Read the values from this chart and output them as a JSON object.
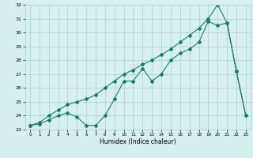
{
  "xlabel": "Humidex (Indice chaleur)",
  "line1_x": [
    0,
    1,
    2,
    3,
    4,
    5,
    6,
    7,
    8,
    9,
    10,
    11,
    12,
    13,
    14,
    15,
    16,
    17,
    18,
    19,
    20,
    21,
    22,
    23
  ],
  "line1_y": [
    23.3,
    23.4,
    23.7,
    24.0,
    24.2,
    23.9,
    23.3,
    23.3,
    24.0,
    25.2,
    26.5,
    26.5,
    27.4,
    26.5,
    27.0,
    28.0,
    28.5,
    28.8,
    29.3,
    30.8,
    30.5,
    30.7,
    27.2,
    24.0
  ],
  "line2_x": [
    0,
    1,
    2,
    3,
    4,
    5,
    6,
    7,
    8,
    9,
    10,
    11,
    12,
    13,
    14,
    15,
    16,
    17,
    18,
    19,
    20,
    21,
    22,
    23
  ],
  "line2_y": [
    23.3,
    23.5,
    24.0,
    24.4,
    24.8,
    25.0,
    25.2,
    25.5,
    26.0,
    26.5,
    27.0,
    27.3,
    27.7,
    28.0,
    28.4,
    28.8,
    29.3,
    29.8,
    30.3,
    31.0,
    32.0,
    30.7,
    27.2,
    24.0
  ],
  "line_color": "#1a7a6e",
  "bg_color": "#d6f0ee",
  "grid_color": "#aacfcc",
  "ylim": [
    23,
    32
  ],
  "xlim": [
    -0.5,
    23.5
  ],
  "yticks": [
    23,
    24,
    25,
    26,
    27,
    28,
    29,
    30,
    31,
    32
  ],
  "xticks": [
    0,
    1,
    2,
    3,
    4,
    5,
    6,
    7,
    8,
    9,
    10,
    11,
    12,
    13,
    14,
    15,
    16,
    17,
    18,
    19,
    20,
    21,
    22,
    23
  ]
}
